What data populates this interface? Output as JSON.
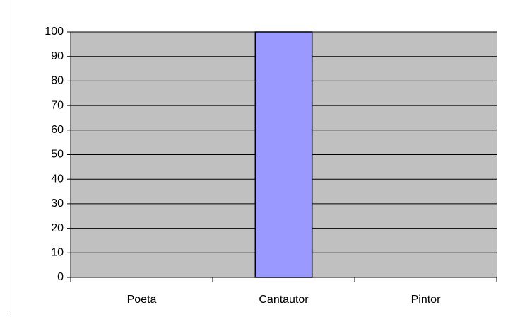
{
  "chart_data": {
    "type": "bar",
    "categories": [
      "Poeta",
      "Cantautor",
      "Pintor"
    ],
    "values": [
      0,
      100,
      0
    ],
    "color": "#9999ff",
    "ylim": [
      0,
      100
    ],
    "yticks": [
      0,
      10,
      20,
      30,
      40,
      50,
      60,
      70,
      80,
      90,
      100
    ],
    "grid": true
  }
}
